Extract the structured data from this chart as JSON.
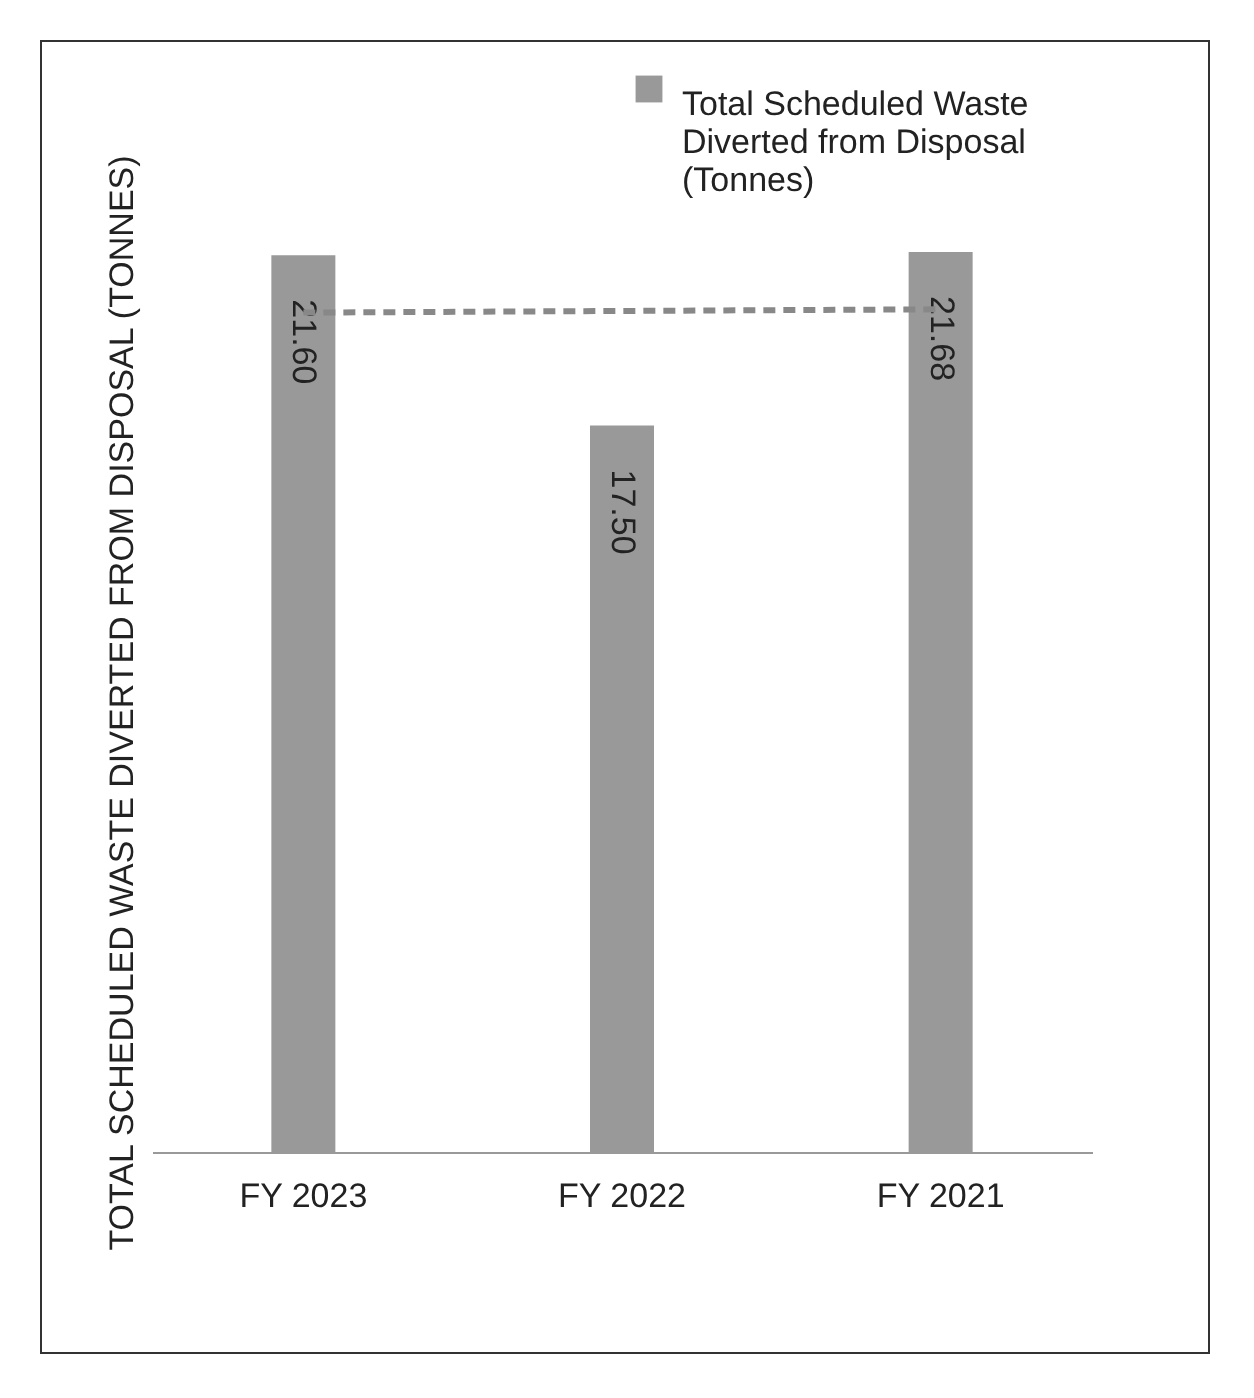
{
  "chart_data": {
    "type": "bar",
    "ylabel": "TOTAL SCHEDULED WASTE DIVERTED FROM DISPOSAL (TONNES)",
    "categories": [
      "FY 2023",
      "FY 2022",
      "FY 2021"
    ],
    "series": [
      {
        "name": "Total Scheduled Waste Diverted from Disposal (Tonnes)",
        "color": "#999999",
        "values": [
          21.6,
          17.5,
          21.68
        ],
        "value_labels": [
          "21.60",
          "17.50",
          "21.68"
        ]
      },
      {
        "type": "line",
        "line_style": "dashed",
        "color": "#888888",
        "values": [
          20.22,
          20.26,
          20.3
        ]
      }
    ],
    "legend": "top right",
    "tick_labels": "x",
    "grid": false
  }
}
